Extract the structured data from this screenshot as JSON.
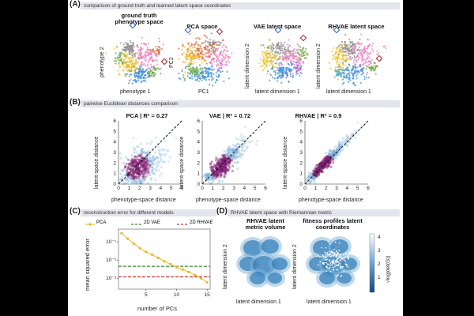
{
  "section_a": {
    "letter": "(A)",
    "bar_text": "comparison of ground truth and learned latent space coordinates",
    "panels": [
      {
        "title": "ground truth phenotype space",
        "xlabel": "phenotype 1",
        "ylabel": "phenotype 2"
      },
      {
        "title": "PCA space",
        "xlabel": "PC1",
        "ylabel": "PC2"
      },
      {
        "title": "VAE latent space",
        "xlabel": "latent dimension 1",
        "ylabel": "latent dimension 2"
      },
      {
        "title": "RHVAE latent space",
        "xlabel": "latent dimension 1",
        "ylabel": "latent dimension 2"
      }
    ],
    "cluster_colors": [
      "#f0c020",
      "#3b8fd9",
      "#f07cc0",
      "#e06a2a",
      "#6aaa3a",
      "#9b6fc0",
      "#8c8c8c",
      "#45b3a8"
    ]
  },
  "section_b": {
    "letter": "(B)",
    "bar_text": "pairwise Euclidean distances comparison",
    "panels": [
      {
        "title": "PCA | R² = 0.27"
      },
      {
        "title": "VAE | R² = 0.72"
      },
      {
        "title": "RHVAE | R² = 0.9"
      }
    ],
    "xlabel": "phenotype-space distance",
    "ylabel": "latent-space distance",
    "ticks": [
      "0",
      "1",
      "2",
      "3",
      "4",
      "5",
      "6"
    ],
    "axis_max": 6,
    "density_color": "#7a1a6e"
  },
  "section_c": {
    "letter": "(C)",
    "bar_text": "reconstruction error for different models",
    "legend": [
      {
        "label": "PCA",
        "color": "#e8b820"
      },
      {
        "label": "2D VAE",
        "color": "#3a8a2a"
      },
      {
        "label": "2D RHVAE",
        "color": "#d03030"
      }
    ],
    "ylabel": "mean squared error",
    "xlabel": "number of PCs",
    "yticks": [
      "10⁻¹",
      "10⁻²",
      "10⁻³"
    ],
    "xticks": [
      "5",
      "10",
      "15"
    ],
    "chart_data": {
      "type": "line",
      "xlabel": "number of PCs",
      "ylabel": "mean squared error",
      "yscale": "log",
      "xlim": [
        0.5,
        15.5
      ],
      "ylim_log10": [
        -3.6,
        -0.3
      ],
      "series": [
        {
          "name": "PCA",
          "x": [
            1,
            2,
            3,
            4,
            5,
            6,
            7,
            8,
            9,
            10,
            11,
            12,
            13,
            14,
            15
          ],
          "values": [
            0.3,
            0.15,
            0.08,
            0.045,
            0.028,
            0.02,
            0.013,
            0.0085,
            0.006,
            0.004,
            0.003,
            0.0022,
            0.0015,
            0.001,
            0.0006
          ]
        },
        {
          "name": "2D VAE",
          "constant": 0.0045
        },
        {
          "name": "2D RHVAE",
          "constant": 0.0012
        }
      ]
    }
  },
  "section_d": {
    "letter": "(D)",
    "bar_text": "RHVAE latent space with Riemannian metric",
    "panels": [
      {
        "title": "RHVAE latent metric volume",
        "xlabel": "latent dimension 1",
        "ylabel": "latent dimension 2"
      },
      {
        "title": "fitness profiles latent coordinates",
        "xlabel": "latent dimension 1",
        "ylabel": "latent dimension 2"
      }
    ],
    "colorbar": {
      "label": "√log|det(G)|",
      "ticks": [
        "4",
        "3",
        "2",
        "1"
      ],
      "top_color": "#ffffff",
      "bottom_color": "#0a4a80"
    }
  }
}
